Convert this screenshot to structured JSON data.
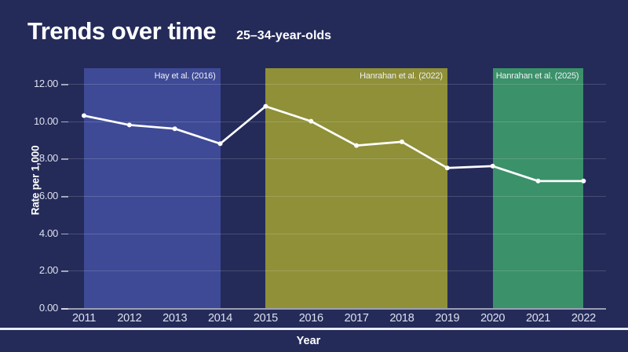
{
  "page": {
    "title": "Trends over time",
    "subtitle": "25–34-year-olds"
  },
  "chart_data": {
    "type": "line",
    "title": "Trends over time",
    "subtitle": "25–34-year-olds",
    "xlabel": "Year",
    "ylabel": "Rate per 1,000",
    "x": [
      2011,
      2012,
      2013,
      2014,
      2015,
      2016,
      2017,
      2018,
      2019,
      2020,
      2021,
      2022
    ],
    "values": [
      10.3,
      9.8,
      9.6,
      8.8,
      10.8,
      10.0,
      8.7,
      8.9,
      7.5,
      7.6,
      6.8,
      6.8
    ],
    "ylim": [
      0,
      12
    ],
    "yticks": [
      12,
      10,
      8,
      6,
      4,
      2,
      0
    ],
    "ytick_labels": [
      "12.00",
      "10.00",
      "8.00",
      "6.00",
      "4.00",
      "2.00",
      "0.00"
    ],
    "grid": true,
    "legend": "none",
    "line_color": "#ffffff",
    "marker": "circle",
    "regions": [
      {
        "label": "Hay et al. (2016)",
        "start": 2011,
        "end": 2014,
        "color": "#3e4a95"
      },
      {
        "label": "Hanrahan et al. (2022)",
        "start": 2015,
        "end": 2019,
        "color": "#8f9038"
      },
      {
        "label": "Hanrahan et al. (2025)",
        "start": 2020,
        "end": 2022,
        "color": "#3b9169"
      }
    ]
  },
  "colors": {
    "background": "#242b59",
    "text": "#ffffff",
    "tick_text": "#dde0ee",
    "gridline": "rgba(255,255,255,0.16)",
    "axis_line": "rgba(255,255,255,0.55)",
    "separator": "#e9ebf4"
  }
}
